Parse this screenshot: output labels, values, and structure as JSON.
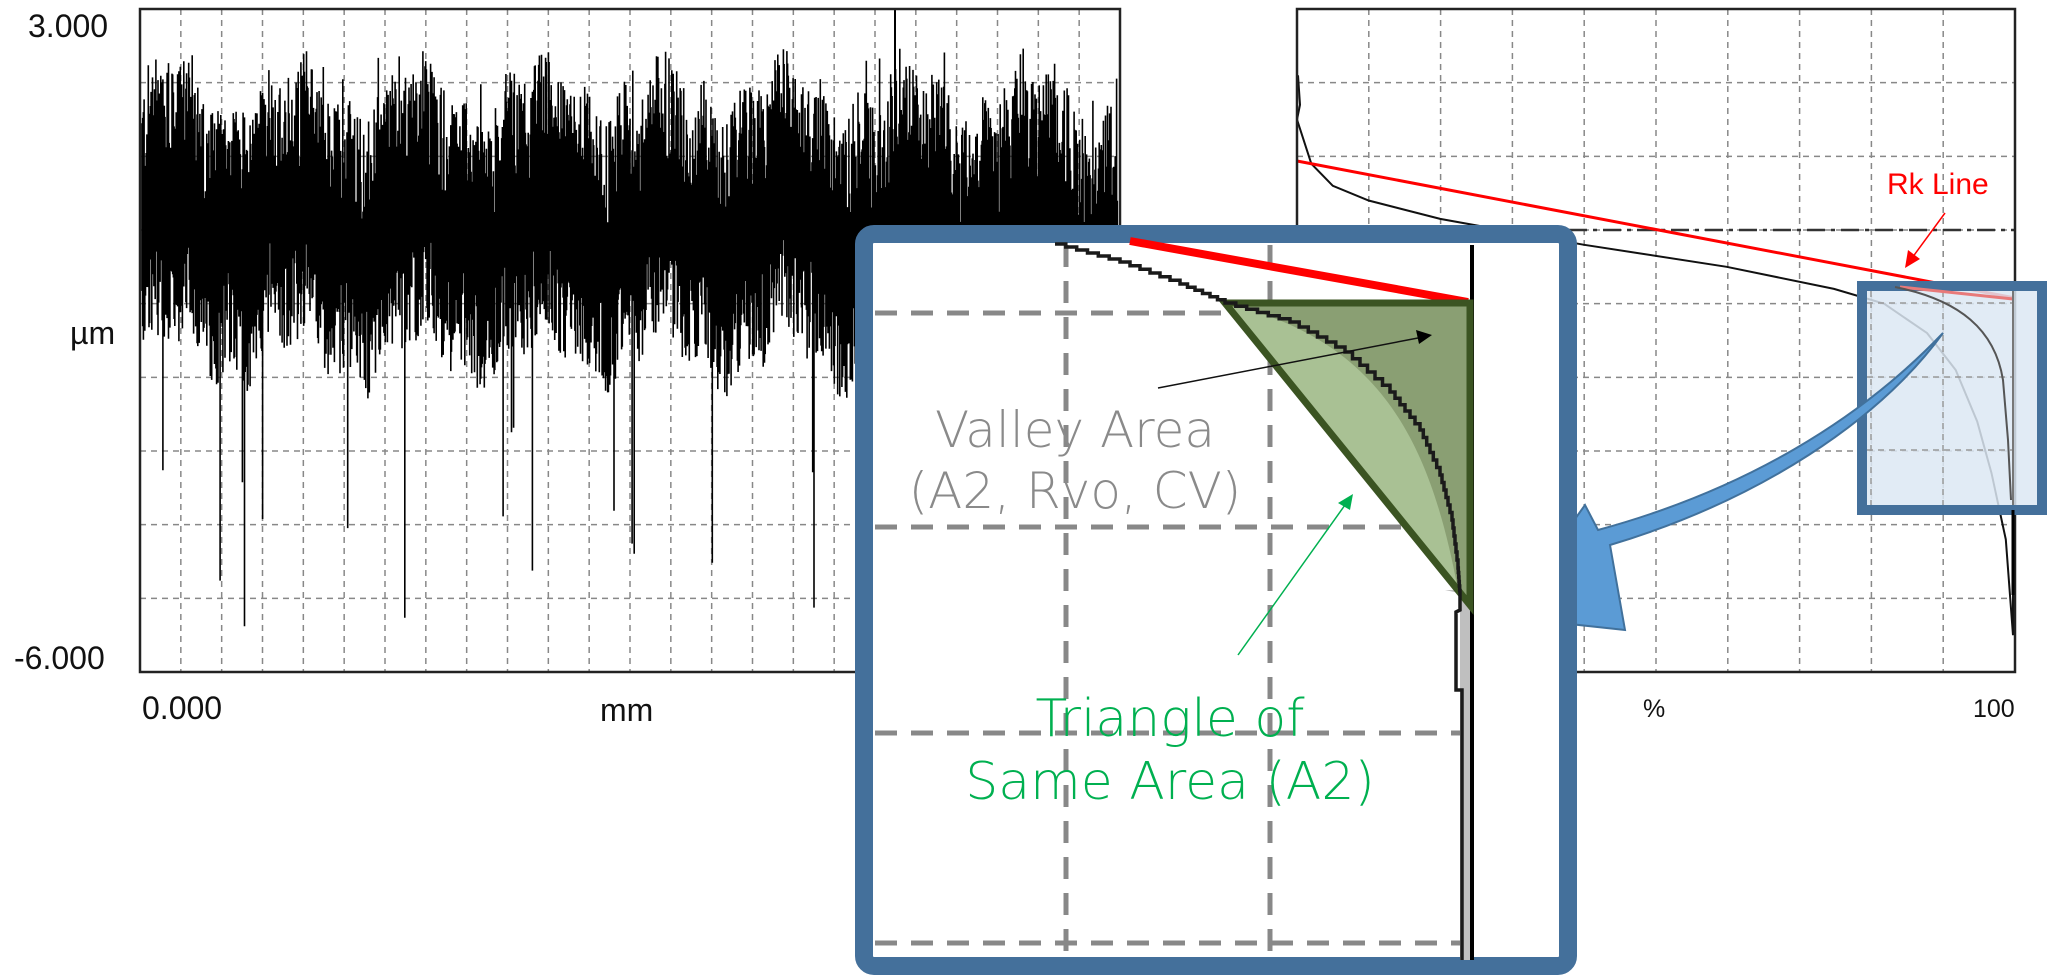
{
  "chart_data": [
    {
      "id": "profile",
      "type": "line",
      "title": "",
      "xlabel": "mm",
      "ylabel": "µm",
      "y_tick_labels": [
        "3.000",
        "-6.000"
      ],
      "x_tick_labels": [
        "0.000"
      ],
      "ylim": [
        -6.0,
        3.0
      ],
      "grid": true,
      "description": "Roughness profile: dense oscillating signal centered near 0 µm with peaks to ~2.4 µm and deep valleys to ~-5.5 µm",
      "series": [
        {
          "name": "profile",
          "approx_mean": 0.0,
          "approx_max": 2.4,
          "approx_min": -5.5
        }
      ]
    },
    {
      "id": "abbott-curve",
      "type": "line",
      "title": "",
      "xlabel": "%",
      "ylabel": "",
      "x_tick_labels": [
        "100"
      ],
      "xlim": [
        0,
        100
      ],
      "grid": true,
      "series": [
        {
          "name": "material-ratio-curve",
          "x": [
            0,
            2,
            5,
            10,
            20,
            40,
            60,
            75,
            82,
            88,
            92,
            95,
            97,
            99,
            100
          ],
          "y": [
            1.5,
            0.9,
            0.6,
            0.4,
            0.15,
            -0.2,
            -0.5,
            -0.8,
            -1.0,
            -1.4,
            -1.9,
            -2.6,
            -3.3,
            -4.2,
            -5.5
          ]
        },
        {
          "name": "Rk Line",
          "x": [
            0,
            100
          ],
          "y": [
            0.35,
            -1.0
          ],
          "color": "#ff0000"
        }
      ],
      "annotations": [
        "Rk Line"
      ]
    }
  ],
  "left_chart": {
    "y_top": "3.000",
    "y_bottom": "-6.000",
    "y_unit": "µm",
    "x_start": "0.000",
    "x_unit": "mm"
  },
  "right_chart": {
    "x_unit": "%",
    "x_end": "100",
    "rk_label": "Rk Line"
  },
  "inset": {
    "valley_label_line1": "Valley Area",
    "valley_label_line2": "(A2, Rvo, CV)",
    "triangle_label_line1": "Triangle of",
    "triangle_label_line2": "Same Area (A2)"
  },
  "colors": {
    "inset_border": "#44709b",
    "highlight_fill": "#dce7f3",
    "arrow_fill": "#5b9bd5",
    "triangle_dark": "#8a9f73",
    "triangle_light": "#a9c194",
    "triangle_stroke": "#3b5422",
    "rk_line": "#ff0000",
    "triangle_text": "#00b050",
    "valley_text": "#8a8a8a"
  }
}
